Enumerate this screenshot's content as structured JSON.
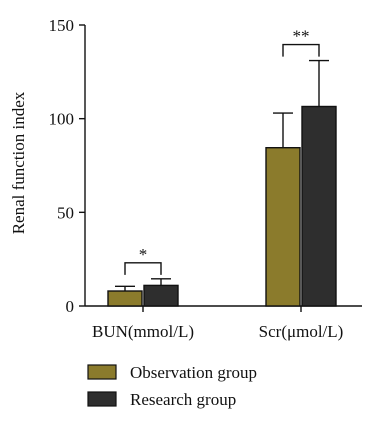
{
  "chart_data": {
    "type": "bar",
    "ylabel": "Renal function index",
    "xlabel": "",
    "ylim": [
      0,
      150
    ],
    "yticks": [
      0,
      50,
      100,
      150
    ],
    "categories": [
      "BUN(mmol/L)",
      "Scr(μmol/L)"
    ],
    "series": [
      {
        "name": "Observation group",
        "color": "#8b7b2c",
        "values": [
          8,
          84.5
        ],
        "errors": [
          2.5,
          18.5
        ]
      },
      {
        "name": "Research group",
        "color": "#2e2e2e",
        "values": [
          11,
          106.5
        ],
        "errors": [
          3.5,
          24.5
        ]
      }
    ],
    "significance": [
      "*",
      "**"
    ],
    "legend": {
      "placement": "bottom-left"
    },
    "grid": false
  }
}
